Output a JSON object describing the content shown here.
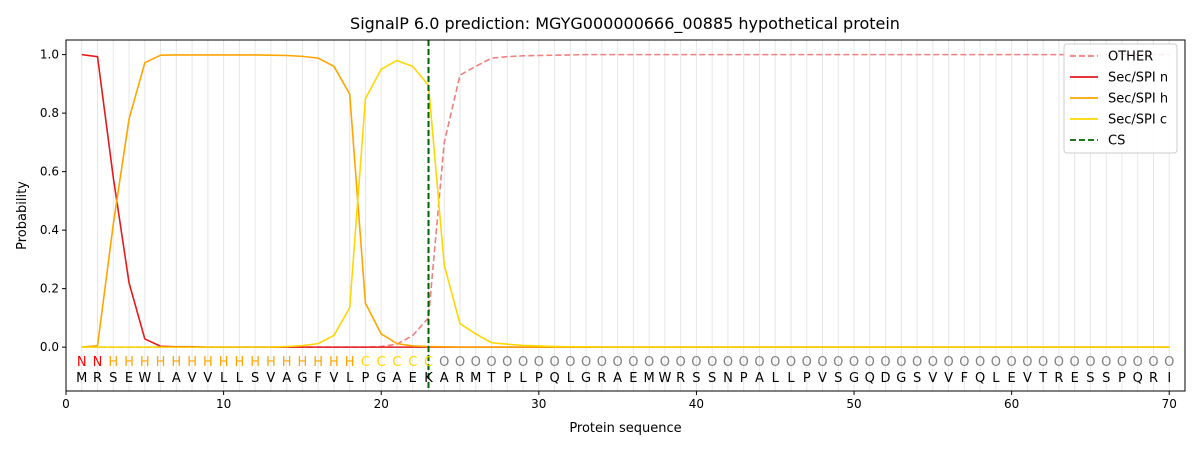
{
  "chart_data": {
    "type": "line",
    "title": "SignalP 6.0 prediction: MGYG000000666_00885 hypothetical protein",
    "xlabel": "Protein sequence",
    "ylabel": "Probability",
    "xlim": [
      0,
      71
    ],
    "ylim": [
      -0.15,
      1.05
    ],
    "xticks": [
      "0",
      "10",
      "20",
      "30",
      "40",
      "50",
      "60",
      "70"
    ],
    "yticks": [
      "0.0",
      "0.2",
      "0.4",
      "0.6",
      "0.8",
      "1.0"
    ],
    "legend_position": "top-right",
    "sequence": [
      "M",
      "R",
      "S",
      "E",
      "W",
      "L",
      "A",
      "V",
      "V",
      "L",
      "L",
      "S",
      "V",
      "A",
      "G",
      "F",
      "V",
      "L",
      "P",
      "G",
      "A",
      "E",
      "K",
      "A",
      "R",
      "M",
      "T",
      "P",
      "L",
      "P",
      "Q",
      "L",
      "G",
      "R",
      "A",
      "E",
      "M",
      "W",
      "R",
      "S",
      "S",
      "N",
      "P",
      "A",
      "L",
      "L",
      "P",
      "V",
      "S",
      "G",
      "Q",
      "D",
      "G",
      "S",
      "V",
      "V",
      "F",
      "Q",
      "L",
      "E",
      "V",
      "T",
      "R",
      "E",
      "S",
      "S",
      "P",
      "Q",
      "R",
      "I"
    ],
    "labels": [
      "N",
      "N",
      "H",
      "H",
      "H",
      "H",
      "H",
      "H",
      "H",
      "H",
      "H",
      "H",
      "H",
      "H",
      "H",
      "H",
      "H",
      "H",
      "C",
      "C",
      "C",
      "C",
      "C",
      "O",
      "O",
      "O",
      "O",
      "O",
      "O",
      "O",
      "O",
      "O",
      "O",
      "O",
      "O",
      "O",
      "O",
      "O",
      "O",
      "O",
      "O",
      "O",
      "O",
      "O",
      "O",
      "O",
      "O",
      "O",
      "O",
      "O",
      "O",
      "O",
      "O",
      "O",
      "O",
      "O",
      "O",
      "O",
      "O",
      "O",
      "O",
      "O",
      "O",
      "O",
      "O",
      "O",
      "O",
      "O",
      "O",
      "O"
    ],
    "label_colors": {
      "N": "#ff0000",
      "H": "#ffa500",
      "C": "#ffd700",
      "O": "#808080"
    },
    "cleavage_site": 23,
    "series": [
      {
        "name": "OTHER",
        "color": "#f08080",
        "dash": "dashed",
        "values": [
          0.0,
          0.0,
          0.0,
          0.0,
          0.0,
          0.0,
          0.0,
          0.0,
          0.0,
          0.0,
          0.0,
          0.0,
          0.0,
          0.0,
          0.0,
          0.0,
          0.0,
          0.0,
          0.0,
          0.002,
          0.01,
          0.04,
          0.1,
          0.7,
          0.93,
          0.96,
          0.988,
          0.993,
          0.996,
          0.997,
          0.998,
          0.999,
          1.0,
          1.0,
          1.0,
          1.0,
          1.0,
          1.0,
          1.0,
          1.0,
          1.0,
          1.0,
          1.0,
          1.0,
          1.0,
          1.0,
          1.0,
          1.0,
          1.0,
          1.0,
          1.0,
          1.0,
          1.0,
          1.0,
          1.0,
          1.0,
          1.0,
          1.0,
          1.0,
          1.0,
          1.0,
          1.0,
          1.0,
          1.0,
          1.0,
          1.0,
          1.0,
          1.0,
          1.0,
          1.0
        ]
      },
      {
        "name": "Sec/SPI n",
        "color": "#e41a1c",
        "dash": "solid",
        "values": [
          1.0,
          0.993,
          0.58,
          0.22,
          0.028,
          0.003,
          0.001,
          0.001,
          0.0,
          0.0,
          0.0,
          0.0,
          0.0,
          0.0,
          0.0,
          0.0,
          0.0,
          0.0,
          0.0,
          0.0,
          0.0,
          0.0,
          0.0,
          0.0,
          0.0,
          0.0,
          0.0,
          0.0,
          0.0,
          0.0,
          0.0,
          0.0,
          0.0,
          0.0,
          0.0,
          0.0,
          0.0,
          0.0,
          0.0,
          0.0,
          0.0,
          0.0,
          0.0,
          0.0,
          0.0,
          0.0,
          0.0,
          0.0,
          0.0,
          0.0,
          0.0,
          0.0,
          0.0,
          0.0,
          0.0,
          0.0,
          0.0,
          0.0,
          0.0,
          0.0,
          0.0,
          0.0,
          0.0,
          0.0,
          0.0,
          0.0,
          0.0,
          0.0,
          0.0,
          0.0
        ]
      },
      {
        "name": "Sec/SPI h",
        "color": "#ffa500",
        "dash": "solid",
        "values": [
          0.0,
          0.005,
          0.42,
          0.78,
          0.972,
          0.998,
          0.999,
          0.999,
          0.999,
          0.999,
          0.999,
          0.999,
          0.998,
          0.997,
          0.994,
          0.988,
          0.96,
          0.865,
          0.15,
          0.045,
          0.012,
          0.004,
          0.002,
          0.001,
          0.0,
          0.0,
          0.0,
          0.0,
          0.0,
          0.0,
          0.0,
          0.0,
          0.0,
          0.0,
          0.0,
          0.0,
          0.0,
          0.0,
          0.0,
          0.0,
          0.0,
          0.0,
          0.0,
          0.0,
          0.0,
          0.0,
          0.0,
          0.0,
          0.0,
          0.0,
          0.0,
          0.0,
          0.0,
          0.0,
          0.0,
          0.0,
          0.0,
          0.0,
          0.0,
          0.0,
          0.0,
          0.0,
          0.0,
          0.0,
          0.0,
          0.0,
          0.0,
          0.0,
          0.0,
          0.0
        ]
      },
      {
        "name": "Sec/SPI c",
        "color": "#ffd700",
        "dash": "solid",
        "values": [
          0.0,
          0.0,
          0.0,
          0.0,
          0.0,
          0.0,
          0.0,
          0.0,
          0.0,
          0.0,
          0.0,
          0.0,
          0.0,
          0.002,
          0.005,
          0.012,
          0.04,
          0.135,
          0.85,
          0.95,
          0.98,
          0.96,
          0.895,
          0.28,
          0.08,
          0.045,
          0.015,
          0.01,
          0.006,
          0.004,
          0.002,
          0.001,
          0.001,
          0.0,
          0.0,
          0.0,
          0.0,
          0.0,
          0.0,
          0.0,
          0.0,
          0.0,
          0.0,
          0.0,
          0.0,
          0.0,
          0.0,
          0.0,
          0.0,
          0.0,
          0.0,
          0.0,
          0.0,
          0.0,
          0.0,
          0.0,
          0.0,
          0.0,
          0.0,
          0.0,
          0.0,
          0.0,
          0.0,
          0.0,
          0.0,
          0.0,
          0.0,
          0.0,
          0.0,
          0.0
        ]
      }
    ],
    "cs_legend": {
      "name": "CS",
      "color": "#006400"
    }
  }
}
